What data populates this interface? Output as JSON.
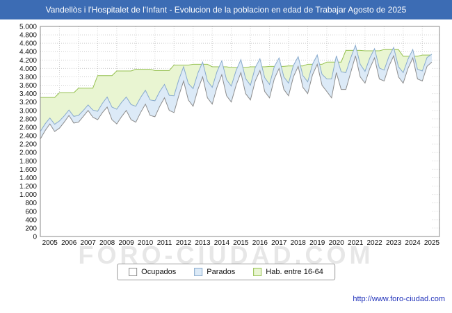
{
  "title": "Vandellòs i l'Hospitalet de l'Infant - Evolucion de la poblacion en edad de Trabajar Agosto de 2025",
  "watermark": "FORO-CIUDAD.COM",
  "footer_url": "http://www.foro-ciudad.com",
  "colors": {
    "titlebar_bg": "#3c6cb4",
    "footer_link": "#2233bb",
    "grid": "#cccccc",
    "plot_border": "#888888"
  },
  "chart_data": {
    "type": "area",
    "title": "Vandellòs i l'Hospitalet de l'Infant - Evolucion de la poblacion en edad de Trabajar Agosto de 2025",
    "xlabel": "",
    "ylabel": "",
    "grid": true,
    "legend_position": "bottom",
    "stacking_note": "Parados is stacked on top of Ocupados; Hab. entre 16-64 is the stepped total behind both",
    "x_start": 2005.0,
    "x_step": 0.25,
    "x_end": 2025.5,
    "xlim": [
      2005.0,
      2025.9
    ],
    "ylim": [
      0,
      5000
    ],
    "ytick_step": 200,
    "yticks": [
      "0",
      "200",
      "400",
      "600",
      "800",
      "1.000",
      "1.200",
      "1.400",
      "1.600",
      "1.800",
      "2.000",
      "2.200",
      "2.400",
      "2.600",
      "2.800",
      "3.000",
      "3.200",
      "3.400",
      "3.600",
      "3.800",
      "4.000",
      "4.200",
      "4.400",
      "4.600",
      "4.800",
      "5.000"
    ],
    "xticks": [
      "2005",
      "2006",
      "2007",
      "2008",
      "2009",
      "2010",
      "2011",
      "2012",
      "2013",
      "2014",
      "2015",
      "2016",
      "2017",
      "2018",
      "2019",
      "2020",
      "2021",
      "2022",
      "2023",
      "2024",
      "2025"
    ],
    "series": [
      {
        "name": "Ocupados",
        "fill": "#ffffff",
        "stroke": "#8c8c8c",
        "values": [
          2320,
          2520,
          2680,
          2500,
          2580,
          2720,
          2880,
          2700,
          2720,
          2860,
          3000,
          2840,
          2780,
          2950,
          3080,
          2780,
          2680,
          2850,
          3000,
          2780,
          2720,
          2950,
          3150,
          2880,
          2850,
          3100,
          3300,
          3000,
          2950,
          3350,
          3700,
          3250,
          3100,
          3500,
          3800,
          3300,
          3150,
          3550,
          3850,
          3350,
          3200,
          3600,
          3900,
          3400,
          3250,
          3700,
          3950,
          3450,
          3300,
          3750,
          4000,
          3500,
          3350,
          3800,
          4050,
          3550,
          3400,
          3850,
          4100,
          3600,
          3450,
          3300,
          3900,
          3500,
          3500,
          3900,
          4300,
          3800,
          3650,
          4000,
          4250,
          3750,
          3700,
          4050,
          4300,
          3800,
          3650,
          4000,
          4250,
          3750,
          3700,
          4050,
          4150
        ]
      },
      {
        "name": "Parados",
        "fill": "#dceaf7",
        "stroke": "#88aacd",
        "values": [
          180,
          160,
          140,
          170,
          170,
          150,
          130,
          160,
          160,
          140,
          130,
          170,
          200,
          220,
          240,
          300,
          350,
          340,
          320,
          360,
          380,
          360,
          330,
          370,
          380,
          350,
          320,
          360,
          400,
          380,
          340,
          390,
          420,
          390,
          350,
          400,
          400,
          370,
          330,
          380,
          380,
          350,
          310,
          360,
          350,
          320,
          280,
          330,
          320,
          290,
          250,
          300,
          300,
          270,
          230,
          280,
          280,
          250,
          220,
          260,
          300,
          450,
          400,
          420,
          400,
          350,
          250,
          300,
          280,
          250,
          220,
          260,
          260,
          230,
          200,
          240,
          250,
          220,
          200,
          230,
          240,
          210,
          190
        ]
      },
      {
        "name": "Hab. entre 16-64",
        "fill": "#e9f5d2",
        "stroke": "#94c04e",
        "values": [
          3310,
          3310,
          3310,
          3310,
          3420,
          3420,
          3420,
          3420,
          3530,
          3530,
          3530,
          3530,
          3830,
          3830,
          3830,
          3830,
          3940,
          3940,
          3940,
          3940,
          3980,
          3980,
          3980,
          3980,
          3950,
          3950,
          3950,
          3950,
          4080,
          4080,
          4080,
          4080,
          4100,
          4100,
          4100,
          4100,
          4040,
          4040,
          4040,
          4040,
          4020,
          4020,
          4020,
          4020,
          4040,
          4040,
          4040,
          4040,
          4050,
          4050,
          4050,
          4050,
          4060,
          4060,
          4060,
          4060,
          4100,
          4100,
          4100,
          4100,
          4150,
          4150,
          4150,
          4150,
          4430,
          4430,
          4430,
          4430,
          4420,
          4420,
          4420,
          4420,
          4450,
          4450,
          4450,
          4450,
          4290,
          4290,
          4290,
          4290,
          4320,
          4320,
          4320
        ]
      }
    ]
  }
}
